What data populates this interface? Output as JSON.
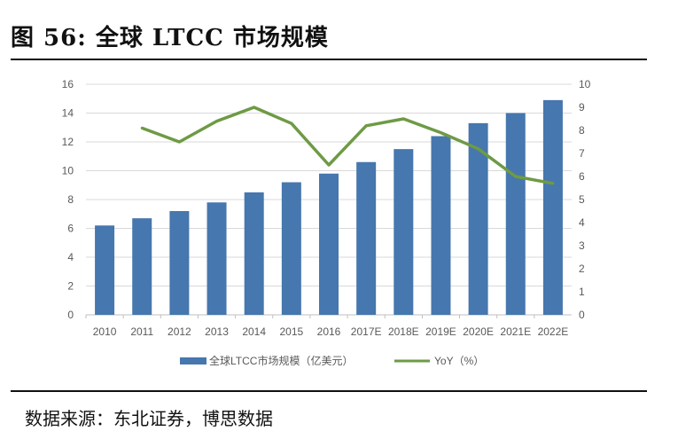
{
  "header": {
    "title": "图 56:  全球 LTCC 市场规模"
  },
  "footer": {
    "source": "数据来源：东北证券，博思数据"
  },
  "chart_data": {
    "type": "bar",
    "categories": [
      "2010",
      "2011",
      "2012",
      "2013",
      "2014",
      "2015",
      "2016",
      "2017E",
      "2018E",
      "2019E",
      "2020E",
      "2021E",
      "2022E"
    ],
    "series": [
      {
        "name": "全球LTCC市场规模（亿美元）",
        "type": "bar",
        "axis": "left",
        "color": "#4677AE",
        "values": [
          6.2,
          6.7,
          7.2,
          7.8,
          8.5,
          9.2,
          9.8,
          10.6,
          11.5,
          12.4,
          13.3,
          14.0,
          14.9
        ]
      },
      {
        "name": "YoY（%）",
        "type": "line",
        "axis": "right",
        "color": "#6E9A45",
        "values": [
          null,
          8.1,
          7.5,
          8.4,
          9.0,
          8.3,
          6.5,
          8.2,
          8.5,
          7.9,
          7.2,
          6.0,
          5.7
        ]
      }
    ],
    "y_left": {
      "range": [
        0,
        16
      ],
      "ticks": [
        "0",
        "2",
        "4",
        "6",
        "8",
        "10",
        "12",
        "14",
        "16"
      ]
    },
    "y_right": {
      "range": [
        0,
        10
      ],
      "ticks": [
        "0",
        "1",
        "2",
        "3",
        "4",
        "5",
        "6",
        "7",
        "8",
        "9",
        "10"
      ]
    },
    "grid": true,
    "legend_position": "bottom"
  }
}
